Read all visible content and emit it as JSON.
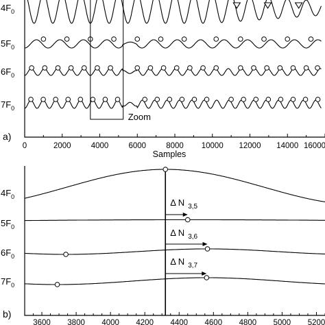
{
  "chart_data": [
    {
      "panel": "a)",
      "type": "line",
      "xlabel": "Samples",
      "xlim": [
        0,
        16000
      ],
      "x_ticks": [
        "0",
        "2000",
        "4000",
        "6000",
        "8000",
        "10000",
        "12000",
        "14000",
        "16000"
      ],
      "series": [
        {
          "name": "4F",
          "period": 1000,
          "marker": "triangle",
          "markers_x": [
            11300,
            12950,
            14600
          ]
        },
        {
          "name": "5F",
          "period": 1250,
          "marker": "circle",
          "markers_x": [
            1000,
            2250,
            3500,
            4750,
            6000,
            7250,
            8500,
            10200,
            11500,
            12750,
            14000,
            15250
          ]
        },
        {
          "name": "6F",
          "period": 700,
          "marker": "circle",
          "markers_x": [
            370,
            1070,
            1770,
            2470,
            3170,
            3870,
            4570,
            6000,
            6700,
            7400,
            8100,
            8800,
            9500,
            10200,
            11500,
            12200,
            12900,
            13600,
            14300,
            15000,
            15600
          ]
        },
        {
          "name": "7F",
          "period": 660,
          "marker": "circle",
          "markers_x": [
            330,
            990,
            1650,
            2310,
            2970,
            3630,
            4290,
            4950,
            6400,
            7060,
            7720,
            8380,
            9040,
            9700,
            11000,
            11660,
            12320,
            12980,
            13640,
            14300,
            14960,
            15620
          ]
        }
      ],
      "zoom_box": {
        "label": "Zoom",
        "x_range": [
          3500,
          5250
        ]
      }
    },
    {
      "panel": "b)",
      "type": "line",
      "xlim": [
        3500,
        5250
      ],
      "x_ticks": [
        "3600",
        "3800",
        "4000",
        "4200",
        "4400",
        "4600",
        "4800",
        "5000",
        "5200"
      ],
      "reference_x": 4320,
      "series": [
        {
          "name": "4F",
          "peak_x": 4320
        },
        {
          "name": "5F",
          "peak_x": 4450
        },
        {
          "name": "6F",
          "peak_x": 4565,
          "marker_left_x": 3740
        },
        {
          "name": "7F",
          "peak_x": 4560,
          "marker_left_x": 3690
        }
      ],
      "annotations": [
        {
          "text": "Δ N",
          "sub": "3,5",
          "from_x": 4320,
          "to_x": 4450
        },
        {
          "text": "Δ N",
          "sub": "3,6",
          "from_x": 4320,
          "to_x": 4565
        },
        {
          "text": "Δ N",
          "sub": "3,7",
          "from_x": 4320,
          "to_x": 4560
        }
      ]
    }
  ]
}
